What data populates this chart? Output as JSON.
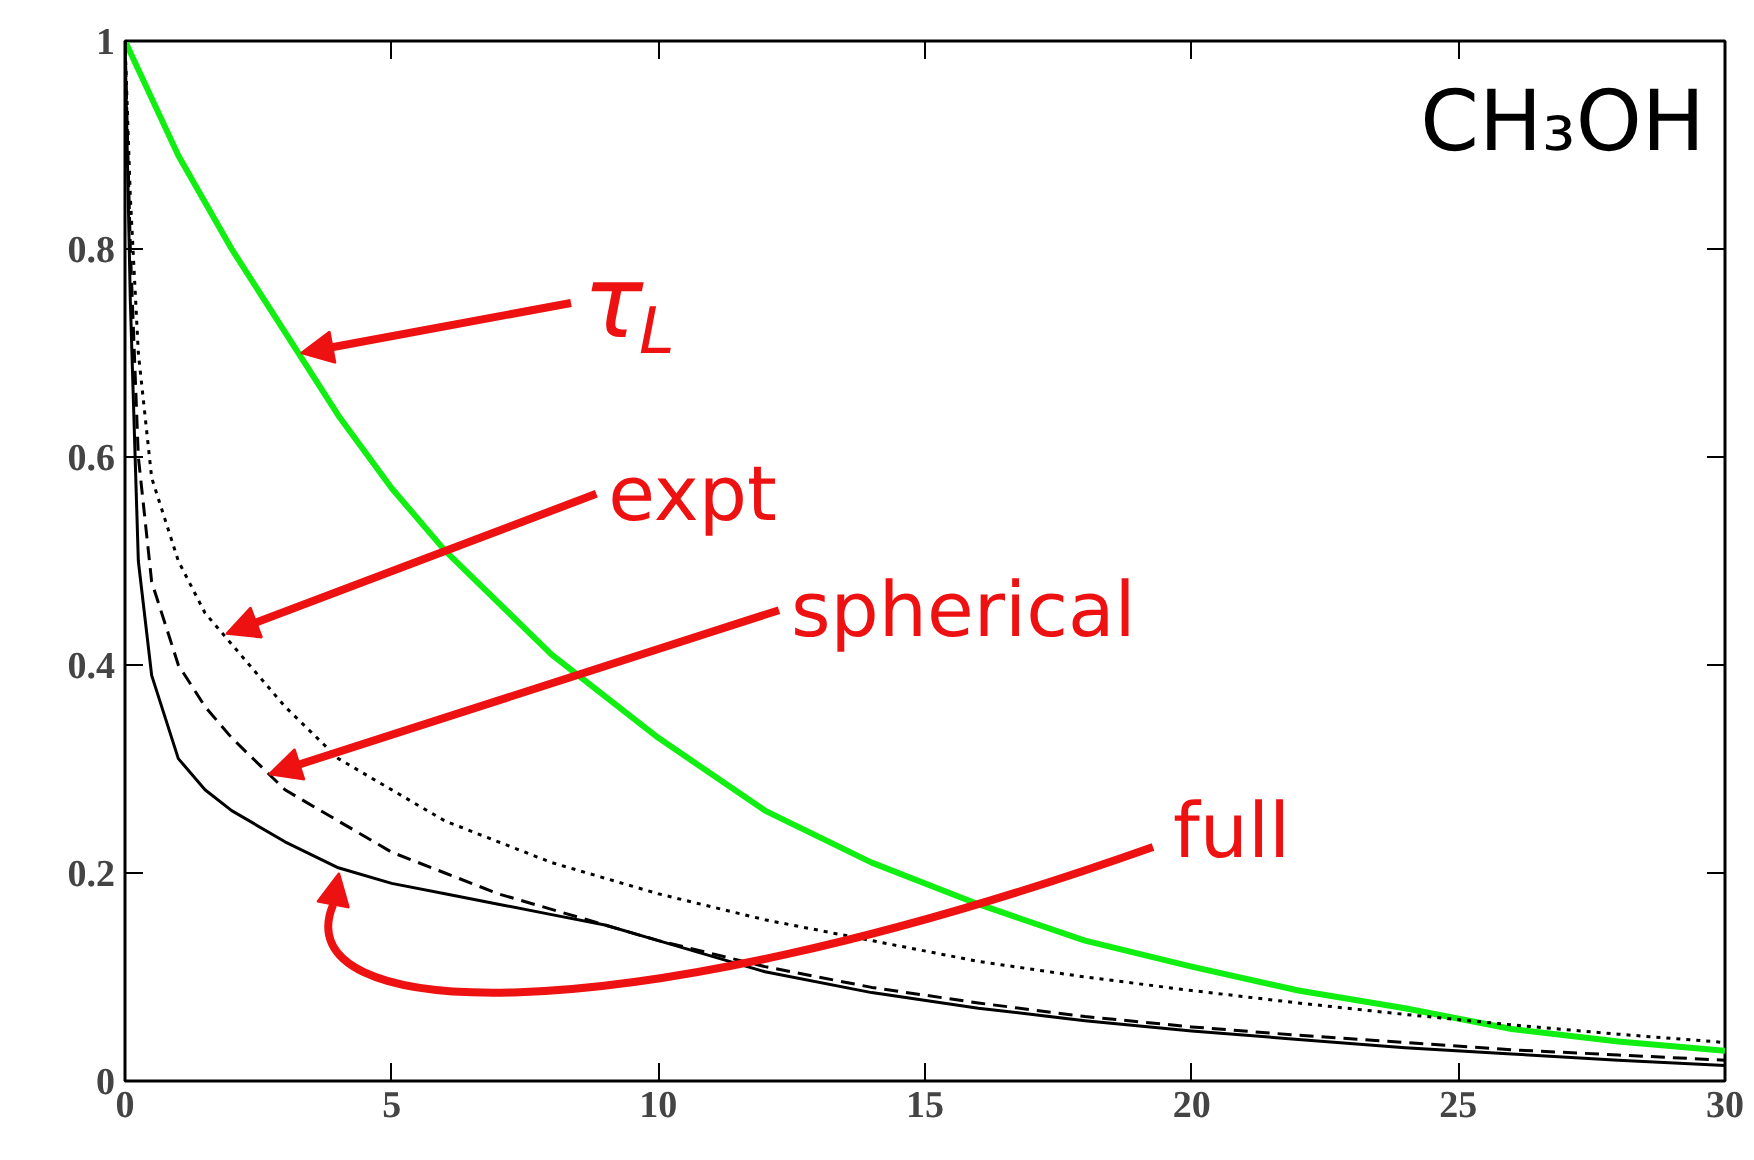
{
  "chart_data": {
    "type": "line",
    "xlim": [
      0,
      30
    ],
    "ylim": [
      0,
      1
    ],
    "xticks": [
      0,
      5,
      10,
      15,
      20,
      25,
      30
    ],
    "yticks": [
      0,
      0.2,
      0.4,
      0.6,
      0.8,
      1
    ],
    "grid": false,
    "x": [
      0,
      0.1,
      0.25,
      0.5,
      1,
      1.5,
      2,
      3,
      4,
      5,
      6,
      7,
      8,
      9,
      10,
      12,
      14,
      16,
      18,
      20,
      22,
      24,
      26,
      28,
      30
    ],
    "series": [
      {
        "color": "#11ee11",
        "line_style": "solid",
        "x": [
          0,
          1,
          2,
          3,
          4,
          5,
          6,
          8,
          10,
          12,
          14,
          16,
          18,
          20,
          22,
          24,
          26,
          28,
          30
        ],
        "values": [
          1,
          0.89,
          0.8,
          0.72,
          0.64,
          0.57,
          0.51,
          0.41,
          0.33,
          0.26,
          0.21,
          0.17,
          0.135,
          0.11,
          0.087,
          0.07,
          0.05,
          0.038,
          0.029
        ]
      },
      {
        "color": "#000000",
        "line_style": "dotted",
        "values": [
          1,
          0.85,
          0.7,
          0.58,
          0.5,
          0.45,
          0.42,
          0.36,
          0.31,
          0.28,
          0.25,
          0.23,
          0.21,
          0.195,
          0.18,
          0.155,
          0.135,
          0.115,
          0.1,
          0.087,
          0.075,
          0.064,
          0.054,
          0.045,
          0.037
        ]
      },
      {
        "color": "#000000",
        "line_style": "dashed",
        "values": [
          1,
          0.8,
          0.6,
          0.48,
          0.4,
          0.36,
          0.33,
          0.28,
          0.25,
          0.22,
          0.2,
          0.18,
          0.165,
          0.15,
          0.135,
          0.11,
          0.09,
          0.075,
          0.062,
          0.052,
          0.044,
          0.037,
          0.03,
          0.025,
          0.02
        ]
      },
      {
        "color": "#000000",
        "line_style": "solid",
        "values": [
          1,
          0.75,
          0.5,
          0.39,
          0.31,
          0.28,
          0.26,
          0.23,
          0.205,
          0.19,
          0.18,
          0.17,
          0.16,
          0.15,
          0.135,
          0.105,
          0.085,
          0.07,
          0.058,
          0.048,
          0.04,
          0.032,
          0.026,
          0.02,
          0.015
        ]
      }
    ],
    "annotations": [
      {
        "text": "τ$_{L}$",
        "x": 3.3,
        "y": 0.7
      },
      {
        "text": "expt",
        "x": 1.9,
        "y": 0.43
      },
      {
        "text": "spherical",
        "x": 2.7,
        "y": 0.295
      },
      "full",
      "CH₃OH"
    ]
  }
}
